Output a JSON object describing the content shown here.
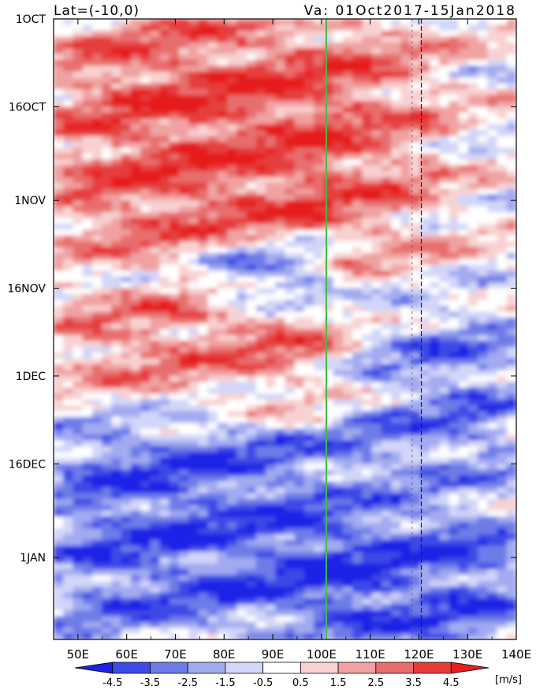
{
  "header": {
    "left": "Lat=(-10,0)",
    "right": "Va: 01Oct2017-15Jan2018"
  },
  "chart_data": {
    "type": "heatmap",
    "variable": "Va",
    "units_label": "[m/s]",
    "x_range": [
      45,
      140
    ],
    "x_ticks": [
      {
        "value": 50,
        "label": "50E"
      },
      {
        "value": 60,
        "label": "60E"
      },
      {
        "value": 70,
        "label": "70E"
      },
      {
        "value": 80,
        "label": "80E"
      },
      {
        "value": 90,
        "label": "90E"
      },
      {
        "value": 100,
        "label": "100E"
      },
      {
        "value": 110,
        "label": "110E"
      },
      {
        "value": 120,
        "label": "120E"
      },
      {
        "value": 130,
        "label": "130E"
      },
      {
        "value": 140,
        "label": "140E"
      }
    ],
    "y_range": [
      "2017-10-01",
      "2018-01-15"
    ],
    "y_ticks": [
      {
        "date": "2017-10-01",
        "label": "1OCT"
      },
      {
        "date": "2017-10-16",
        "label": "16OCT"
      },
      {
        "date": "2017-11-01",
        "label": "1NOV"
      },
      {
        "date": "2017-11-16",
        "label": "16NOV"
      },
      {
        "date": "2017-12-01",
        "label": "1DEC"
      },
      {
        "date": "2017-12-16",
        "label": "16DEC"
      },
      {
        "date": "2018-01-01",
        "label": "1JAN"
      }
    ],
    "reference_line": {
      "lon": 101,
      "color": "#44bb44"
    },
    "colorbar": {
      "levels": [
        -4.5,
        -3.5,
        -2.5,
        -1.5,
        -0.5,
        0.5,
        1.5,
        2.5,
        3.5,
        4.5
      ],
      "labels": [
        "-4.5",
        "-3.5",
        "-2.5",
        "-1.5",
        "-0.5",
        "0.5",
        "1.5",
        "2.5",
        "3.5",
        "4.5"
      ],
      "colors": [
        "#1e22e6",
        "#3c4ae6",
        "#6e7ce8",
        "#a2aaf0",
        "#d2d6f8",
        "#ffffff",
        "#f8d2d2",
        "#f0a2a2",
        "#e86e6e",
        "#e63c3c",
        "#e61e1e"
      ]
    },
    "features": [
      {
        "start_date": "2017-10-01",
        "end_date": "2017-11-10",
        "lon_range": [
          45,
          120
        ],
        "sign": "positive",
        "peak_value": 4.5
      },
      {
        "start_date": "2017-11-10",
        "end_date": "2017-11-18",
        "lon_range": [
          80,
          100
        ],
        "sign": "negative",
        "peak_value": -4.5
      },
      {
        "start_date": "2017-11-18",
        "end_date": "2017-12-08",
        "lon_range": [
          45,
          110
        ],
        "sign": "positive",
        "peak_value": 3.5
      },
      {
        "start_date": "2017-11-20",
        "end_date": "2017-12-20",
        "lon_range": [
          105,
          140
        ],
        "sign": "negative",
        "peak_value": -3.5
      },
      {
        "start_date": "2017-12-05",
        "end_date": "2018-01-15",
        "lon_range": [
          45,
          100
        ],
        "sign": "negative",
        "peak_value": -4.5
      },
      {
        "start_date": "2017-12-25",
        "end_date": "2018-01-15",
        "lon_range": [
          100,
          140
        ],
        "sign": "negative",
        "peak_value": -4.5
      }
    ]
  }
}
